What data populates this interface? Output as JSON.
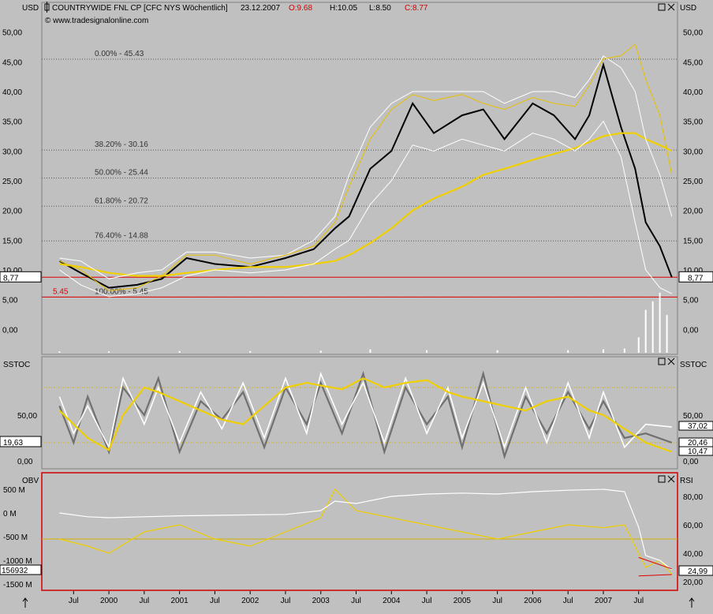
{
  "header": {
    "left_unit": "USD",
    "right_unit": "USD",
    "symbol": "COUNTRYWIDE FNL CP [CFC NYS  Wöchentlich]",
    "date": "23.12.2007",
    "open": "O:9.68",
    "high": "H:10.05",
    "low": "L:8.50",
    "close": "C:8.77",
    "watermark": "© www.tradesignalonline.com"
  },
  "colors": {
    "background": "#c0c0c0",
    "price": "#000000",
    "bollinger": "#ffffff",
    "moving_average": "#f0d000",
    "envelope": "#e8c000",
    "red_line": "#e00000",
    "stoch_fast": "#ffffff",
    "stoch_slow": "#707070",
    "stoch_signal": "#f0d000",
    "rsi": "#f0d000",
    "obv": "#ffffff"
  },
  "icons": [
    "square-icon",
    "close-icon",
    "up-arrow-icon"
  ],
  "chart_data": [
    {
      "type": "line",
      "panel": "price",
      "y_ticks": [
        "50,00",
        "45,00",
        "40,00",
        "35,00",
        "30,00",
        "25,00",
        "20,00",
        "15,00",
        "10,00",
        "5,00",
        "0,00"
      ],
      "y_tick_values": [
        50,
        45,
        40,
        35,
        30,
        25,
        20,
        15,
        10,
        5,
        0
      ],
      "ylim": [
        -3,
        53
      ],
      "fib_levels": [
        {
          "label": "0.00% - 45.43",
          "value": 45.43
        },
        {
          "label": "38.20% - 30.16",
          "value": 30.16
        },
        {
          "label": "50.00% - 25.44",
          "value": 25.44
        },
        {
          "label": "61.80% - 20.72",
          "value": 20.72
        },
        {
          "label": "76.40% - 14.88",
          "value": 14.88
        },
        {
          "label": "100.00% - 5.45",
          "value": 5.45
        }
      ],
      "red_lines": [
        {
          "label": "5.45",
          "value": 5.45
        },
        {
          "label": "8,77",
          "value": 8.77
        }
      ],
      "last_price_label": "8,77",
      "x_dates": [
        1999.3,
        1999.6,
        2000.0,
        2000.4,
        2000.75,
        2001.1,
        2001.5,
        2002.0,
        2002.5,
        2002.9,
        2003.2,
        2003.4,
        2003.7,
        2004.0,
        2004.3,
        2004.6,
        2005.0,
        2005.3,
        2005.6,
        2006.0,
        2006.3,
        2006.6,
        2006.8,
        2007.0,
        2007.25,
        2007.45,
        2007.6,
        2007.8,
        2007.97
      ],
      "series": [
        {
          "role": "close",
          "values": [
            11.5,
            9.5,
            7.0,
            7.5,
            8.5,
            12.0,
            11.0,
            10.5,
            12.0,
            13.5,
            17.0,
            19.0,
            27.0,
            30.0,
            38.0,
            33.0,
            36.0,
            37.0,
            32.0,
            38.0,
            36.0,
            32.0,
            36.0,
            44.5,
            34.0,
            27.0,
            18.0,
            14.0,
            8.77
          ]
        },
        {
          "role": "moving_average",
          "values": [
            11.0,
            10.5,
            9.5,
            9.0,
            9.0,
            9.5,
            10.0,
            10.5,
            10.5,
            11.0,
            11.5,
            12.5,
            14.5,
            17.0,
            20.0,
            22.0,
            24.0,
            26.0,
            27.0,
            28.5,
            29.5,
            30.5,
            31.5,
            32.5,
            33.0,
            33.0,
            32.0,
            31.0,
            30.0
          ]
        },
        {
          "role": "bollinger_upper",
          "values": [
            12.0,
            11.5,
            8.5,
            9.5,
            10.0,
            13.0,
            13.0,
            12.0,
            12.5,
            15.0,
            19.0,
            26.0,
            34.0,
            38.0,
            40.0,
            40.0,
            40.0,
            40.0,
            38.0,
            40.0,
            40.0,
            39.0,
            42.0,
            46.0,
            44.0,
            40.0,
            32.0,
            26.0,
            19.0
          ]
        },
        {
          "role": "bollinger_lower",
          "values": [
            10.0,
            7.5,
            5.5,
            6.0,
            7.0,
            9.0,
            10.0,
            9.5,
            10.0,
            11.0,
            13.5,
            15.0,
            21.0,
            25.0,
            31.0,
            30.0,
            32.0,
            31.0,
            30.0,
            33.0,
            32.0,
            30.0,
            32.0,
            35.0,
            29.0,
            18.0,
            10.0,
            7.0,
            6.0
          ]
        },
        {
          "role": "envelope",
          "values": [
            11.5,
            10.0,
            6.5,
            7.0,
            9.0,
            12.5,
            12.5,
            11.0,
            12.5,
            14.0,
            18.0,
            24.0,
            32.0,
            37.0,
            39.5,
            38.5,
            39.5,
            38.0,
            37.0,
            39.0,
            38.0,
            37.5,
            41.0,
            45.5,
            46.0,
            48.0,
            42.0,
            36.0,
            26.0
          ]
        }
      ]
    },
    {
      "type": "bar",
      "panel": "volume",
      "x_dates": [
        1999.3,
        2000.0,
        2001.0,
        2002.0,
        2003.0,
        2003.7,
        2004.5,
        2005.5,
        2006.5,
        2007.0,
        2007.3,
        2007.5,
        2007.6,
        2007.7,
        2007.8,
        2007.9
      ],
      "values": [
        0.8,
        0.8,
        1.0,
        1.0,
        1.2,
        2.0,
        1.5,
        1.5,
        1.5,
        2.0,
        2.5,
        9.0,
        25.0,
        30.0,
        35.0,
        22.0
      ]
    },
    {
      "type": "line",
      "panel": "sstoc",
      "left_label": "SSTOC",
      "right_label": "SSTOC",
      "y_ticks": [
        "50,00",
        "0,00"
      ],
      "y_tick_values": [
        50,
        0
      ],
      "ylim": [
        -5,
        110
      ],
      "levels": [
        80,
        20
      ],
      "left_value_label": "19,63",
      "right_value_labels": [
        "37,02",
        "20,46",
        "10,47"
      ],
      "x_dates": [
        1999.3,
        1999.5,
        1999.7,
        2000.0,
        2000.2,
        2000.5,
        2000.7,
        2001.0,
        2001.3,
        2001.6,
        2001.9,
        2002.2,
        2002.5,
        2002.8,
        2003.0,
        2003.3,
        2003.6,
        2003.9,
        2004.2,
        2004.5,
        2004.8,
        2005.0,
        2005.3,
        2005.6,
        2005.9,
        2006.2,
        2006.5,
        2006.8,
        2007.0,
        2007.3,
        2007.6,
        2007.97
      ],
      "series": [
        {
          "role": "fast",
          "values": [
            70,
            30,
            60,
            15,
            90,
            40,
            80,
            20,
            75,
            35,
            85,
            25,
            90,
            30,
            95,
            40,
            85,
            20,
            90,
            30,
            80,
            25,
            85,
            15,
            80,
            20,
            85,
            25,
            75,
            15,
            40,
            37
          ]
        },
        {
          "role": "slow",
          "values": [
            60,
            20,
            70,
            10,
            80,
            50,
            90,
            10,
            65,
            45,
            75,
            15,
            80,
            40,
            85,
            30,
            95,
            10,
            80,
            40,
            70,
            15,
            95,
            5,
            70,
            30,
            75,
            35,
            65,
            25,
            30,
            20
          ]
        },
        {
          "role": "signal",
          "values": [
            55,
            40,
            25,
            12,
            50,
            80,
            75,
            65,
            55,
            45,
            40,
            60,
            80,
            85,
            82,
            78,
            90,
            80,
            85,
            88,
            75,
            70,
            65,
            60,
            55,
            65,
            70,
            55,
            50,
            35,
            20,
            10
          ]
        }
      ]
    },
    {
      "type": "line",
      "panel": "obv_rsi",
      "left_label": "OBV",
      "right_label": "RSI",
      "left_y_ticks": [
        "500 M",
        "0 M",
        "-500 M",
        "-1000 M",
        "-1500 M"
      ],
      "left_y_tick_values": [
        500,
        0,
        -500,
        -1000,
        -1500
      ],
      "right_y_ticks": [
        "80,00",
        "60,00",
        "40,00",
        "20,00"
      ],
      "right_y_tick_values": [
        80,
        60,
        40,
        20
      ],
      "left_value_label": "156932",
      "right_value_label": "24,99",
      "level": 50,
      "x_dates": [
        1999.3,
        1999.7,
        2000.0,
        2000.5,
        2001.0,
        2001.5,
        2002.0,
        2002.5,
        2003.0,
        2003.2,
        2003.5,
        2004.0,
        2004.5,
        2005.0,
        2005.5,
        2006.0,
        2006.5,
        2007.0,
        2007.3,
        2007.5,
        2007.6,
        2007.8,
        2007.97
      ],
      "series": [
        {
          "role": "obv",
          "axis": "left",
          "values": [
            0,
            -80,
            -100,
            -80,
            -60,
            -50,
            -40,
            -30,
            50,
            250,
            200,
            350,
            400,
            420,
            400,
            450,
            480,
            500,
            450,
            -300,
            -900,
            -1000,
            -1200
          ]
        },
        {
          "role": "rsi",
          "axis": "right",
          "values": [
            50,
            45,
            40,
            55,
            60,
            50,
            45,
            55,
            65,
            85,
            70,
            65,
            60,
            55,
            50,
            55,
            60,
            58,
            60,
            40,
            30,
            35,
            25
          ]
        }
      ],
      "trendlines": [
        {
          "x": [
            2007.5,
            2007.97
          ],
          "y": [
            37,
            29
          ]
        },
        {
          "x": [
            2007.5,
            2007.97
          ],
          "y": [
            24,
            25
          ]
        }
      ]
    }
  ],
  "x_axis": {
    "labels": [
      "Jul",
      "2000",
      "Jul",
      "2001",
      "Jul",
      "2002",
      "Jul",
      "2003",
      "Jul",
      "2004",
      "Jul",
      "2005",
      "Jul",
      "2006",
      "Jul",
      "2007",
      "Jul"
    ],
    "dates": [
      1999.5,
      2000.0,
      2000.5,
      2001.0,
      2001.5,
      2002.0,
      2002.5,
      2003.0,
      2003.5,
      2004.0,
      2004.5,
      2005.0,
      2005.5,
      2006.0,
      2006.5,
      2007.0,
      2007.5
    ]
  }
}
